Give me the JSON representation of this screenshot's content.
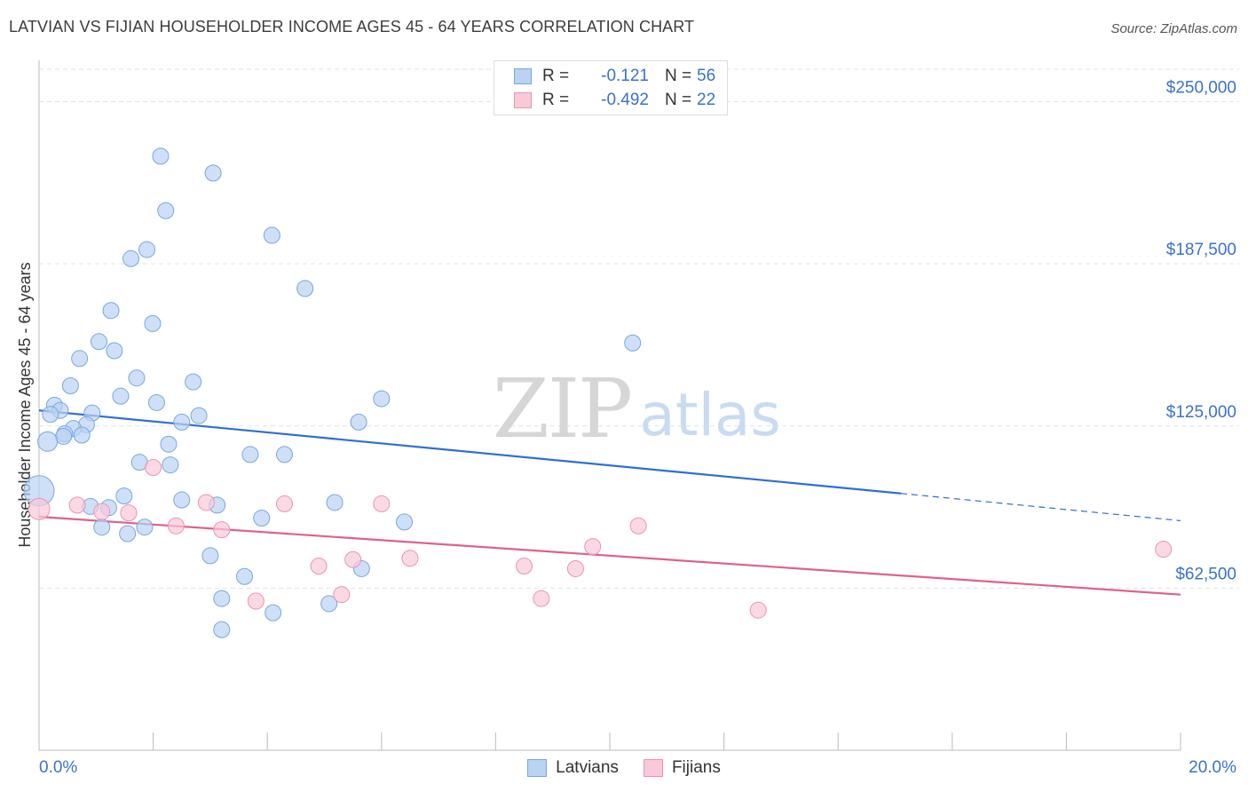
{
  "header": {
    "title": "LATVIAN VS FIJIAN HOUSEHOLDER INCOME AGES 45 - 64 YEARS CORRELATION CHART",
    "source": "Source: ZipAtlas.com"
  },
  "watermark": {
    "zip": "ZIP",
    "atlas": "atlas"
  },
  "legend": {
    "rows": [
      {
        "r_label": "R =",
        "r_value": "-0.121",
        "n_label": "N =",
        "n_value": "56",
        "color": "#a9c8ee"
      },
      {
        "r_label": "R =",
        "r_value": "-0.492",
        "n_label": "N =",
        "n_value": "22",
        "color": "#f6bfd1"
      }
    ]
  },
  "bottom_legend": {
    "latvians": "Latvians",
    "fijians": "Fijians"
  },
  "colors": {
    "latvian_fill": "#b9d3f3",
    "latvian_stroke": "#7aa6de",
    "latvian_line": "#2f6fd0",
    "fijian_fill": "#f9c9d8",
    "fijian_stroke": "#eb93b2",
    "fijian_line": "#e0608d",
    "tick_label": "#3a72c8"
  },
  "chart_data": {
    "type": "scatter",
    "title": "LATVIAN VS FIJIAN HOUSEHOLDER INCOME AGES 45 - 64 YEARS CORRELATION CHART",
    "xlabel": "",
    "ylabel": "Householder Income Ages 45 - 64 years",
    "xlim": [
      0,
      20
    ],
    "ylim": [
      0,
      262500
    ],
    "x_unit": "%",
    "x_tick_labels": [
      "0.0%",
      "20.0%"
    ],
    "y_ticks": [
      62500,
      125000,
      187500,
      250000
    ],
    "y_tick_labels": [
      "$62,500",
      "$125,000",
      "$187,500",
      "$250,000"
    ],
    "grid": "horizontal dashed",
    "legend_position": "top-center",
    "series": [
      {
        "name": "Latvians",
        "r": -0.121,
        "n": 56,
        "points": [
          [
            2.13,
            229000
          ],
          [
            3.05,
            222500
          ],
          [
            2.22,
            208000
          ],
          [
            4.08,
            198500
          ],
          [
            1.89,
            193000
          ],
          [
            1.61,
            189500
          ],
          [
            4.66,
            178000
          ],
          [
            1.26,
            169500
          ],
          [
            1.99,
            164500
          ],
          [
            1.05,
            157500
          ],
          [
            1.32,
            154000
          ],
          [
            0.71,
            151000
          ],
          [
            10.4,
            157000
          ],
          [
            1.71,
            143500
          ],
          [
            2.7,
            142000
          ],
          [
            0.55,
            140500
          ],
          [
            1.43,
            136500
          ],
          [
            6.0,
            135500
          ],
          [
            2.06,
            134000
          ],
          [
            0.27,
            133000
          ],
          [
            0.37,
            131000
          ],
          [
            0.93,
            130000
          ],
          [
            2.8,
            129000
          ],
          [
            0.2,
            129500
          ],
          [
            5.6,
            126500
          ],
          [
            2.5,
            126500
          ],
          [
            0.83,
            125500
          ],
          [
            0.6,
            124000
          ],
          [
            0.45,
            122000
          ],
          [
            0.75,
            121500
          ],
          [
            0.43,
            121000
          ],
          [
            0.15,
            119000
          ],
          [
            2.27,
            118000
          ],
          [
            3.7,
            114000
          ],
          [
            4.3,
            114000
          ],
          [
            1.76,
            111000
          ],
          [
            2.3,
            110000
          ],
          [
            0.0,
            100000
          ],
          [
            1.49,
            98000
          ],
          [
            2.5,
            96500
          ],
          [
            5.18,
            95500
          ],
          [
            3.12,
            94500
          ],
          [
            0.9,
            94000
          ],
          [
            1.22,
            93500
          ],
          [
            3.9,
            89500
          ],
          [
            6.4,
            88000
          ],
          [
            1.1,
            86000
          ],
          [
            1.85,
            86000
          ],
          [
            1.55,
            83500
          ],
          [
            3.0,
            75000
          ],
          [
            5.65,
            70000
          ],
          [
            3.6,
            67000
          ],
          [
            3.2,
            58500
          ],
          [
            4.1,
            53000
          ],
          [
            5.08,
            56500
          ],
          [
            3.2,
            46500
          ]
        ],
        "trend": {
          "x": [
            0.0,
            15.1,
            20.0
          ],
          "y": [
            131000,
            99000,
            88500
          ],
          "dashed_from_x": 15.1
        }
      },
      {
        "name": "Fijians",
        "r": -0.492,
        "n": 22,
        "points": [
          [
            0.0,
            93000
          ],
          [
            2.0,
            109000
          ],
          [
            0.67,
            94500
          ],
          [
            1.1,
            92000
          ],
          [
            1.57,
            91500
          ],
          [
            2.93,
            95500
          ],
          [
            4.3,
            95000
          ],
          [
            6.0,
            95000
          ],
          [
            2.4,
            86500
          ],
          [
            3.2,
            85000
          ],
          [
            10.5,
            86500
          ],
          [
            9.7,
            78500
          ],
          [
            4.9,
            71000
          ],
          [
            5.5,
            73500
          ],
          [
            6.5,
            74000
          ],
          [
            8.5,
            71000
          ],
          [
            9.4,
            70000
          ],
          [
            5.3,
            60000
          ],
          [
            3.8,
            57500
          ],
          [
            8.8,
            58500
          ],
          [
            12.6,
            54000
          ],
          [
            19.7,
            77500
          ]
        ],
        "trend": {
          "x": [
            0.0,
            20.0
          ],
          "y": [
            90000,
            60000
          ]
        }
      }
    ]
  }
}
